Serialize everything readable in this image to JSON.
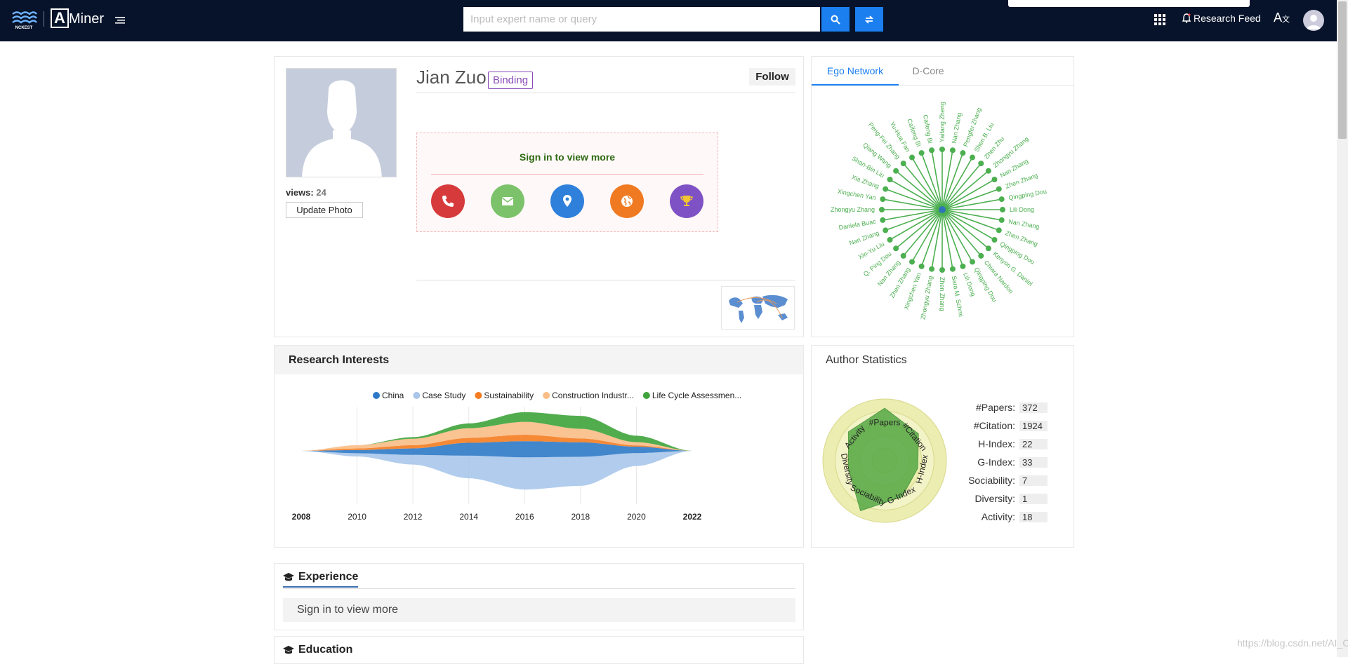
{
  "header": {
    "logo_text": "Miner",
    "logo_letter": "A",
    "search_placeholder": "Input expert name or query",
    "research_feed": "Research Feed",
    "lang_icon": "translate-icon"
  },
  "profile": {
    "name": "Jian Zuo",
    "binding_label": "Binding",
    "follow_label": "Follow",
    "views_label": "views:",
    "views_count": "24",
    "update_photo_label": "Update Photo",
    "sign_in_title": "Sign in to view more",
    "contact_icons": [
      {
        "icon": "phone-icon",
        "color": "#d63a3a"
      },
      {
        "icon": "email-icon",
        "color": "#7cc26a"
      },
      {
        "icon": "location-icon",
        "color": "#2e80db"
      },
      {
        "icon": "globe-icon",
        "color": "#f07a22"
      },
      {
        "icon": "trophy-icon",
        "color": "#7e52c4"
      }
    ]
  },
  "ego_network": {
    "tabs": [
      "Ego Network",
      "D-Core"
    ],
    "active_tab": 0,
    "center_color": "#2f73b8",
    "node_color": "#4caf50",
    "nodes": [
      "Yaifang Zheng",
      "Nan Zhang",
      "Pengfei Zhang",
      "Shen B. Liu",
      "Zhen Zhu",
      "Zhongyu Zhang",
      "Nan Zhang",
      "Zhen Zhang",
      "Qingping Dou",
      "Lili Dong",
      "Nan Zhang",
      "Zhen Zhang",
      "Qingping Dou",
      "Kenyon G. Daniel",
      "Chiara Nardon",
      "Qingping Dou",
      "Lili Dong",
      "Sara M. Schmi",
      "Zhen Zhang",
      "Zhongyu Zhang",
      "Xingchen Yan",
      "Zhen Zhang",
      "Nan Zhang",
      "Q. Ping Dou",
      "Xin-Yu Liu",
      "Nan Zhang",
      "Daniela Buac",
      "Zhongyu Zhang",
      "Xingchen Yan",
      "Xia Zhang",
      "Shan-Bin Liu",
      "Qiang Wang",
      "Peng-Fei Zhang",
      "Yu-Hua Fan",
      "Caifeng Bi",
      "Caifeng Bi"
    ]
  },
  "research_interests": {
    "title": "Research Interests"
  },
  "chart_data": {
    "type": "area",
    "x": [
      2008,
      2010,
      2012,
      2014,
      2016,
      2018,
      2020,
      2022
    ],
    "tick_labels": [
      "2008",
      "2010",
      "2012",
      "2014",
      "2016",
      "2018",
      "2020",
      "2022"
    ],
    "series": [
      {
        "name": "China",
        "color": "#2d79c7",
        "values": [
          0,
          1,
          2,
          4,
          5,
          4.5,
          2,
          0
        ]
      },
      {
        "name": "Case Study",
        "color": "#a9c6ea",
        "values": [
          0,
          1,
          3,
          7,
          10,
          9,
          4,
          0
        ]
      },
      {
        "name": "Sustainability",
        "color": "#f47c20",
        "values": [
          0,
          0.5,
          1,
          1.5,
          2,
          1.2,
          0.4,
          0
        ]
      },
      {
        "name": "Construction Industr...",
        "color": "#f9bd86",
        "values": [
          0,
          1,
          2,
          3,
          4,
          3,
          1,
          0
        ]
      },
      {
        "name": "Life Cycle Assessmen...",
        "color": "#3ea33a",
        "values": [
          0,
          0,
          0.5,
          1.5,
          3,
          4,
          2,
          0
        ]
      }
    ],
    "grid": true,
    "legend_position": "top"
  },
  "author_statistics": {
    "title": "Author Statistics",
    "radar_axes": [
      "#Papers",
      "#Citation",
      "H-Index",
      "G-Index",
      "Sociability",
      "Diversity",
      "Activity"
    ],
    "radar_values": [
      0.85,
      0.7,
      0.55,
      0.65,
      0.9,
      0.6,
      0.75
    ],
    "rows": [
      {
        "label": "#Papers:",
        "value": "372"
      },
      {
        "label": "#Citation:",
        "value": "1924"
      },
      {
        "label": "H-Index:",
        "value": "22"
      },
      {
        "label": "G-Index:",
        "value": "33"
      },
      {
        "label": "Sociability:",
        "value": "7"
      },
      {
        "label": "Diversity:",
        "value": "1"
      },
      {
        "label": "Activity:",
        "value": "18"
      }
    ]
  },
  "experience": {
    "title": "Experience",
    "message": "Sign in to view more"
  },
  "education": {
    "title": "Education"
  },
  "watermark": "https://blog.csdn.net/AI_Cont"
}
